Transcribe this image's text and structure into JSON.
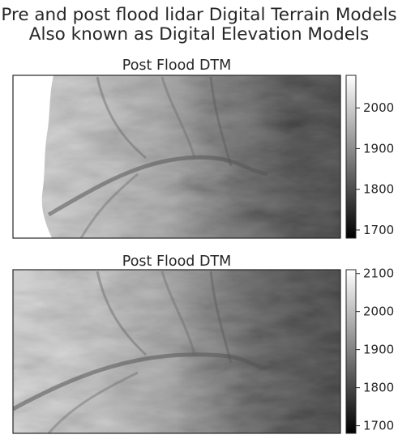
{
  "suptitle_line1": "Pre and post flood lidar Digital Terrain Models",
  "suptitle_line2": "Also known as Digital Elevation Models",
  "chart_data": [
    {
      "type": "heatmap",
      "title": "Post Flood DTM",
      "colormap": "Greys_r",
      "value_range": [
        1680,
        2080
      ],
      "colorbar_ticks": [
        1700,
        1800,
        1900,
        2000
      ],
      "nodata_region": "left edge (white)"
    },
    {
      "type": "heatmap",
      "title": "Post Flood DTM",
      "colormap": "Greys_r",
      "value_range": [
        1680,
        2110
      ],
      "colorbar_ticks": [
        1700,
        1800,
        1900,
        2000,
        2100
      ]
    }
  ]
}
